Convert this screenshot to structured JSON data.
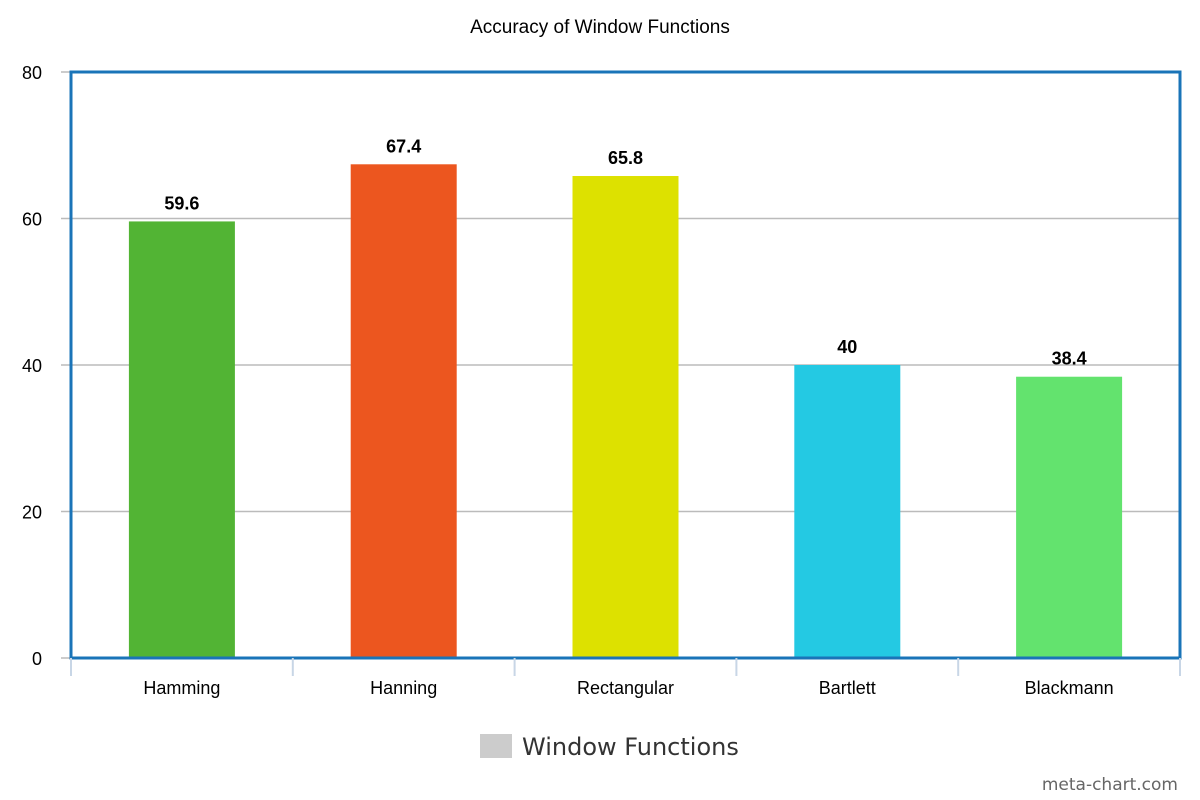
{
  "chart_data": {
    "type": "bar",
    "title": "Accuracy of Window Functions",
    "categories": [
      "Hamming",
      "Hanning",
      "Rectangular",
      "Bartlett",
      "Blackmann"
    ],
    "series": [
      {
        "name": "Window Functions",
        "values": [
          59.6,
          67.4,
          65.8,
          40,
          38.4
        ],
        "colors": [
          "#52b434",
          "#ec561f",
          "#dde100",
          "#24c9e3",
          "#63e36e"
        ]
      }
    ],
    "data_labels": [
      "59.6",
      "67.4",
      "65.8",
      "40",
      "38.4"
    ],
    "xlabel": "",
    "ylabel": "",
    "ylim": [
      0,
      80
    ],
    "yticks": [
      0,
      20,
      40,
      60,
      80
    ],
    "ytick_labels": [
      "0",
      "20",
      "40",
      "60",
      "80"
    ],
    "grid": true,
    "legend_position": "bottom",
    "legend_swatch_color": "#cccccc",
    "plot_border_color": "#1a74b8",
    "grid_color": "#bbbbbb"
  },
  "watermark": "meta-chart.com"
}
